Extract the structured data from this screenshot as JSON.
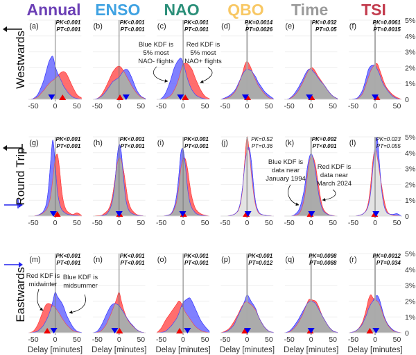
{
  "chart_data": {
    "type": "area",
    "layout": "3 rows x 6 columns of kernel density plots",
    "x_grid": [
      -60,
      -50,
      -40,
      -30,
      -25,
      -20,
      -15,
      -10,
      -5,
      0,
      5,
      10,
      15,
      20,
      25,
      30,
      40,
      50,
      60
    ],
    "x_ticks": [
      "-50",
      "0",
      "50"
    ],
    "xlim": [
      -60,
      60
    ],
    "ylim": [
      0,
      5
    ],
    "y_ticks": [
      "0",
      "1%",
      "2%",
      "3%",
      "4%",
      "5%"
    ],
    "xlabel": "Delay [minutes]",
    "grid": true,
    "series_colors": {
      "blue": "#5555ff",
      "red": "#ff5555",
      "overlap_dark": "#ababab",
      "overlap_light": "#e3e3e3"
    },
    "column_titles": [
      {
        "label": "Annual",
        "color": "#6b3fb5"
      },
      {
        "label": "ENSO",
        "color": "#3fa2e2"
      },
      {
        "label": "NAO",
        "color": "#2b8f79"
      },
      {
        "label": "QBO",
        "color": "#f8c865"
      },
      {
        "label": "Time",
        "color": "#9a9a9a"
      },
      {
        "label": "TSI",
        "color": "#c23a4c"
      }
    ],
    "row_labels": [
      "Westwards",
      "Round Trip",
      "Eastwards"
    ],
    "panels": [
      {
        "label": "(a)",
        "pk": "PK<0.001",
        "pt": "PT<0.001",
        "significant": true,
        "overlap": "dark",
        "blue_marker": -8,
        "red_marker": 17,
        "blue": [
          0,
          0.05,
          0.3,
          0.9,
          1.3,
          1.8,
          2.3,
          2.6,
          2.7,
          2.1,
          1.7,
          1.4,
          1.1,
          0.8,
          0.6,
          0.4,
          0.15,
          0.05,
          0
        ],
        "red": [
          0,
          0.03,
          0.15,
          0.45,
          0.6,
          0.8,
          0.95,
          1.1,
          1.2,
          1.3,
          1.45,
          1.6,
          1.72,
          1.75,
          1.65,
          1.4,
          0.8,
          0.3,
          0.1
        ]
      },
      {
        "label": "(b)",
        "pk": "PK<0.001",
        "pt": "PT<0.001",
        "significant": true,
        "overlap": "dark",
        "blue_marker": 16,
        "red_marker": 2,
        "blue": [
          0,
          0.05,
          0.2,
          0.5,
          0.7,
          0.9,
          1.1,
          1.2,
          1.3,
          1.4,
          1.6,
          1.8,
          1.9,
          1.85,
          1.6,
          1.3,
          0.6,
          0.2,
          0.05
        ],
        "red": [
          0,
          0.05,
          0.3,
          0.8,
          1.1,
          1.4,
          1.7,
          1.9,
          2.05,
          2.1,
          2.0,
          1.8,
          1.55,
          1.3,
          1.05,
          0.8,
          0.4,
          0.15,
          0.05
        ]
      },
      {
        "label": "(c)",
        "pk": "PK<0.001",
        "pt": "PT<0.001",
        "significant": true,
        "overlap": "dark",
        "blue_marker": -6,
        "red_marker": 5,
        "blue": [
          0,
          0.05,
          0.4,
          1.1,
          1.55,
          2.0,
          2.3,
          2.5,
          2.6,
          2.3,
          1.8,
          1.3,
          0.9,
          0.6,
          0.4,
          0.25,
          0.1,
          0.03,
          0
        ],
        "red": [
          0,
          0,
          0.05,
          0.2,
          0.35,
          0.6,
          0.9,
          1.3,
          1.8,
          2.2,
          2.3,
          2.25,
          2.1,
          1.9,
          1.55,
          1.2,
          0.6,
          0.2,
          0.05
        ]
      },
      {
        "label": "(d)",
        "pk": "PK=0.0014",
        "pt": "PT=0.0026",
        "significant": true,
        "overlap": "dark",
        "blue_marker": -4,
        "red_marker": 1,
        "blue": [
          0,
          0.1,
          0.25,
          0.5,
          0.7,
          1.0,
          1.3,
          1.6,
          1.8,
          1.9,
          1.85,
          1.8,
          1.6,
          1.4,
          1.1,
          0.9,
          0.5,
          0.25,
          0.05
        ],
        "red": [
          0,
          0.05,
          0.15,
          0.4,
          0.6,
          0.9,
          1.3,
          1.7,
          2.2,
          2.4,
          2.2,
          1.9,
          1.5,
          1.2,
          0.9,
          0.7,
          0.35,
          0.1,
          0.02
        ]
      },
      {
        "label": "(e)",
        "pk": "PK=0.032",
        "pt": "PT=0.05",
        "significant": true,
        "overlap": "dark",
        "blue_marker": -4,
        "red_marker": 1,
        "blue": [
          0,
          0.05,
          0.3,
          0.7,
          0.95,
          1.2,
          1.5,
          1.75,
          1.9,
          1.9,
          1.75,
          1.6,
          1.4,
          1.2,
          1.05,
          0.9,
          0.5,
          0.2,
          0.05
        ],
        "red": [
          0,
          0.03,
          0.2,
          0.5,
          0.75,
          1.0,
          1.3,
          1.6,
          1.85,
          2.0,
          1.95,
          1.75,
          1.5,
          1.3,
          1.1,
          0.9,
          0.5,
          0.2,
          0.05
        ]
      },
      {
        "label": "(f)",
        "pk": "PK=0.0061",
        "pt": "PT=0.0015",
        "significant": true,
        "overlap": "dark",
        "blue_marker": 0,
        "red_marker": 4,
        "blue": [
          0,
          0.02,
          0.1,
          0.5,
          0.9,
          1.4,
          1.9,
          2.1,
          2.15,
          2.15,
          1.9,
          1.6,
          1.2,
          0.9,
          0.7,
          0.5,
          0.2,
          0.05,
          0
        ],
        "red": [
          0,
          0,
          0.05,
          0.3,
          0.6,
          1.0,
          1.4,
          1.8,
          2.05,
          2.2,
          2.25,
          1.9,
          1.5,
          1.1,
          0.8,
          0.6,
          0.3,
          0.12,
          0
        ]
      },
      {
        "label": "(g)",
        "pk": "PK<0.001",
        "pt": "PT<0.001",
        "significant": true,
        "overlap": "dark",
        "blue_marker": -4,
        "red_marker": 5,
        "blue": [
          0,
          0,
          0.05,
          0.2,
          0.4,
          0.8,
          1.8,
          3.5,
          4.8,
          3.3,
          1.6,
          0.8,
          0.4,
          0.25,
          0.15,
          0.1,
          0.05,
          0.02,
          0
        ],
        "red": [
          0,
          0,
          0.05,
          0.15,
          0.25,
          0.4,
          0.7,
          1.3,
          2.4,
          3.5,
          3.9,
          3.0,
          1.6,
          0.8,
          0.4,
          0.25,
          0.1,
          0.2,
          0.05
        ]
      },
      {
        "label": "(h)",
        "pk": "PK<0.001",
        "pt": "PT<0.001",
        "significant": true,
        "overlap": "dark",
        "blue_marker": 0,
        "red_marker": 1,
        "blue": [
          0,
          0,
          0.02,
          0.1,
          0.25,
          0.5,
          1.0,
          2.0,
          3.6,
          4.5,
          4.0,
          2.4,
          1.1,
          0.5,
          0.25,
          0.15,
          0.05,
          0.02,
          0
        ],
        "red": [
          0,
          0.02,
          0.05,
          0.25,
          0.4,
          0.7,
          1.3,
          2.2,
          3.2,
          3.65,
          3.5,
          2.9,
          2.0,
          1.1,
          0.6,
          0.35,
          0.1,
          0.03,
          0
        ]
      },
      {
        "label": "(i)",
        "pk": "PK<0.001",
        "pt": "PT<0.001",
        "significant": true,
        "overlap": "dark",
        "blue_marker": -1,
        "red_marker": 1,
        "blue": [
          0,
          0,
          0.02,
          0.1,
          0.25,
          0.6,
          1.3,
          2.5,
          4.0,
          4.2,
          3.2,
          1.8,
          0.9,
          0.5,
          0.3,
          0.15,
          0.05,
          0.02,
          0
        ],
        "red": [
          0,
          0,
          0.02,
          0.1,
          0.2,
          0.45,
          0.9,
          1.8,
          3.0,
          3.6,
          3.6,
          3.0,
          2.0,
          1.2,
          0.7,
          0.4,
          0.15,
          0.05,
          0
        ]
      },
      {
        "label": "(j)",
        "pk": "PK=0.52",
        "pt": "PT=0.36",
        "significant": false,
        "overlap": "light",
        "blue_marker": 2,
        "red_marker": -2,
        "blue": [
          0,
          0,
          0.02,
          0.1,
          0.2,
          0.4,
          0.9,
          1.9,
          3.3,
          4.1,
          4.3,
          3.4,
          1.9,
          0.8,
          0.35,
          0.15,
          0.05,
          0.02,
          0
        ],
        "red": [
          0,
          0,
          0.02,
          0.1,
          0.2,
          0.35,
          0.8,
          1.8,
          3.6,
          5.0,
          4.0,
          2.6,
          1.4,
          0.6,
          0.25,
          0.12,
          0.05,
          0.02,
          0
        ]
      },
      {
        "label": "(k)",
        "pk": "PK=0.002",
        "pt": "PT<0.001",
        "significant": true,
        "overlap": "dark",
        "blue_marker": 1,
        "red_marker": -2,
        "blue": [
          0,
          0,
          0.05,
          0.3,
          0.6,
          1.1,
          1.8,
          2.8,
          3.6,
          3.95,
          3.6,
          2.8,
          1.8,
          1.0,
          0.5,
          0.25,
          0.08,
          0.02,
          0
        ],
        "red": [
          0,
          0,
          0.02,
          0.1,
          0.25,
          0.6,
          1.2,
          2.2,
          3.3,
          3.75,
          3.7,
          3.2,
          2.3,
          1.4,
          0.7,
          0.35,
          0.1,
          0.03,
          0
        ]
      },
      {
        "label": "(l)",
        "pk": "PK=0.023",
        "pt": "PT=0.055",
        "significant": false,
        "overlap": "light",
        "blue_marker": 2,
        "red_marker": -1,
        "blue": [
          0,
          0,
          0.02,
          0.1,
          0.2,
          0.35,
          0.7,
          1.5,
          3.0,
          4.5,
          4.9,
          3.3,
          1.6,
          0.7,
          0.3,
          0.15,
          0.1,
          0.15,
          0
        ],
        "red": [
          0,
          0,
          0.02,
          0.1,
          0.2,
          0.4,
          0.9,
          2.0,
          3.5,
          4.2,
          3.7,
          2.8,
          1.9,
          1.1,
          0.5,
          0.2,
          0.05,
          0.02,
          0
        ]
      },
      {
        "label": "(m)",
        "pk": "PK<0.001",
        "pt": "PT<0.001",
        "significant": true,
        "overlap": "dark",
        "blue_marker": -3,
        "red_marker": -18,
        "blue": [
          0,
          0.02,
          0.1,
          0.35,
          0.55,
          0.8,
          1.1,
          1.5,
          2.0,
          2.55,
          2.3,
          2.1,
          1.9,
          1.6,
          1.2,
          0.9,
          0.4,
          0.1,
          0.02
        ],
        "red": [
          0,
          0.1,
          0.5,
          1.2,
          1.55,
          1.8,
          1.85,
          1.8,
          1.7,
          1.6,
          1.4,
          1.2,
          0.95,
          0.75,
          0.55,
          0.4,
          0.15,
          0.05,
          0
        ]
      },
      {
        "label": "(n)",
        "pk": "PK<0.001",
        "pt": "PT<0.001",
        "significant": true,
        "overlap": "dark",
        "blue_marker": -10,
        "red_marker": 1,
        "blue": [
          0,
          0.1,
          0.5,
          1.1,
          1.4,
          1.65,
          1.8,
          1.85,
          1.8,
          1.7,
          1.5,
          1.3,
          1.05,
          0.85,
          0.65,
          0.5,
          0.2,
          0.05,
          0
        ],
        "red": [
          0,
          0.02,
          0.15,
          0.5,
          0.8,
          1.1,
          1.45,
          1.8,
          2.2,
          2.55,
          2.0,
          1.5,
          1.1,
          0.8,
          0.6,
          0.45,
          0.2,
          0.05,
          0
        ]
      },
      {
        "label": "(o)",
        "pk": "PK<0.001",
        "pt": "PT<0.001",
        "significant": true,
        "overlap": "dark",
        "blue_marker": 10,
        "red_marker": -8,
        "blue": [
          0,
          0.02,
          0.1,
          0.35,
          0.5,
          0.7,
          0.9,
          1.2,
          1.6,
          1.9,
          2.05,
          2.15,
          2.2,
          2.0,
          1.7,
          1.4,
          0.8,
          0.4,
          0.1
        ],
        "red": [
          0,
          0.3,
          0.8,
          1.2,
          1.4,
          1.6,
          1.8,
          2.0,
          1.9,
          1.6,
          1.3,
          1.1,
          0.9,
          0.7,
          0.5,
          0.35,
          0.15,
          0.05,
          0
        ]
      },
      {
        "label": "(p)",
        "pk": "PK<0.001",
        "pt": "PT=0.012",
        "significant": true,
        "overlap": "dark",
        "blue_marker": 1,
        "red_marker": -5,
        "blue": [
          0,
          0.05,
          0.2,
          0.5,
          0.8,
          1.1,
          1.4,
          1.7,
          2.05,
          2.4,
          2.2,
          1.95,
          1.75,
          1.5,
          1.1,
          0.8,
          0.35,
          0.1,
          0.02
        ],
        "red": [
          0,
          0.1,
          0.3,
          0.7,
          0.95,
          1.2,
          1.5,
          1.75,
          1.92,
          1.95,
          1.85,
          1.75,
          1.6,
          1.4,
          1.1,
          0.8,
          0.35,
          0.1,
          0.02
        ]
      },
      {
        "label": "(q)",
        "pk": "PK=0.0098",
        "pt": "PT=0.0088",
        "significant": true,
        "overlap": "dark",
        "blue_marker": 0,
        "red_marker": -2,
        "blue": [
          0,
          0.1,
          0.4,
          0.8,
          1.05,
          1.3,
          1.55,
          1.8,
          1.95,
          2.0,
          1.95,
          1.85,
          1.6,
          1.35,
          1.1,
          0.85,
          0.4,
          0.12,
          0.02
        ],
        "red": [
          0,
          0.05,
          0.25,
          0.6,
          0.85,
          1.1,
          1.45,
          1.8,
          2.1,
          2.1,
          2.05,
          2.0,
          1.8,
          1.45,
          1.1,
          0.85,
          0.4,
          0.12,
          0.02
        ]
      },
      {
        "label": "(r)",
        "pk": "PK=0.0012",
        "pt": "PT=0.034",
        "significant": true,
        "overlap": "dark",
        "blue_marker": 2,
        "red_marker": -12,
        "blue": [
          0,
          0.05,
          0.2,
          0.5,
          0.8,
          1.1,
          1.5,
          1.8,
          2.0,
          2.25,
          2.35,
          2.1,
          1.6,
          1.1,
          0.75,
          0.5,
          0.2,
          0.05,
          0
        ],
        "red": [
          0,
          0.05,
          0.2,
          0.6,
          1.0,
          1.5,
          2.1,
          2.4,
          2.2,
          2.05,
          2.0,
          1.8,
          1.4,
          1.0,
          0.7,
          0.45,
          0.15,
          0.05,
          0
        ]
      }
    ],
    "annotations": {
      "nao_blue": [
        "Blue KDF is",
        "5% most",
        "NAO- flights"
      ],
      "nao_red": [
        "Red KDF is",
        "5% most",
        "NAO+ flights"
      ],
      "time_blue": [
        "Blue KDF is",
        "data near",
        "January 1994"
      ],
      "time_red": [
        "Red KDF is",
        "data near",
        "March 2024"
      ],
      "annual_red": [
        "Red KDF is",
        "midwinter"
      ],
      "annual_blue": [
        "Blue KDF is",
        "midsummer"
      ]
    }
  }
}
